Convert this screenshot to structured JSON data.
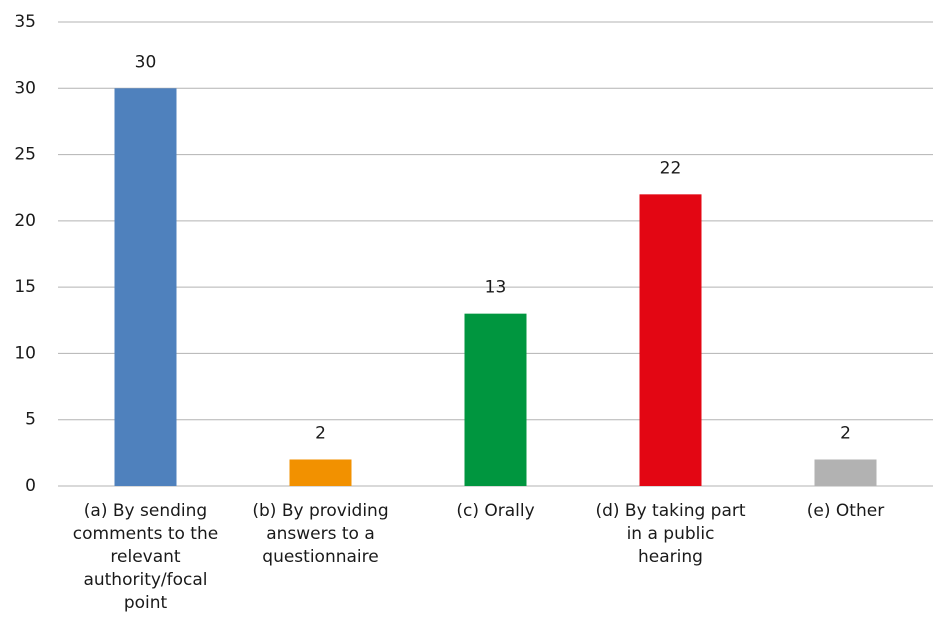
{
  "chart_data": {
    "type": "bar",
    "categories": [
      "(a) By sending comments to the relevant authority/focal point",
      "(b) By providing answers to a questionnaire",
      "(c) Orally",
      "(d) By taking part in a public hearing",
      "(e) Other"
    ],
    "values": [
      30,
      2,
      13,
      22,
      2
    ],
    "colors": [
      "#4f81bd",
      "#f29100",
      "#00963f",
      "#e30613",
      "#b2b2b2"
    ],
    "ylim": [
      0,
      35
    ],
    "yticks": [
      0,
      5,
      10,
      15,
      20,
      25,
      30,
      35
    ],
    "grid": true
  }
}
